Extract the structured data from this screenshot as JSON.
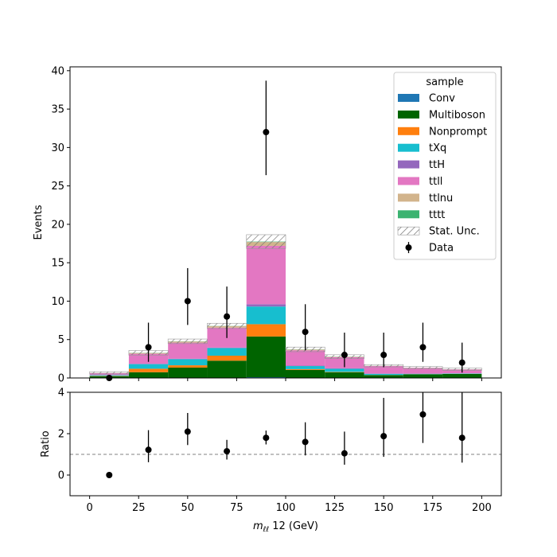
{
  "chart_data": {
    "type": "bar",
    "stacked": true,
    "bin_edges": [
      0,
      20,
      40,
      60,
      80,
      100,
      120,
      140,
      160,
      180,
      200
    ],
    "xlabel": "$m_{\\ell\\ell}$ 12 (GeV)",
    "xlabel_parts": {
      "m": "m",
      "sub": "ℓℓ",
      "rest": " 12 (GeV)"
    },
    "xlim": [
      -10,
      210
    ],
    "xticks": [
      0,
      25,
      50,
      75,
      100,
      125,
      150,
      175,
      200
    ],
    "main": {
      "ylabel": "Events",
      "ylim": [
        0,
        40.5
      ],
      "yticks": [
        0,
        5,
        10,
        15,
        20,
        25,
        30,
        35,
        40
      ]
    },
    "ratio": {
      "ylabel": "Ratio",
      "ylim": [
        -1,
        4
      ],
      "yticks": [
        0,
        2,
        4
      ],
      "reference_line": 1
    },
    "legend": {
      "title": "sample",
      "position": "top-right"
    },
    "series": [
      {
        "name": "Conv",
        "color": "#1f77b4",
        "values": [
          0.02,
          0.05,
          0.05,
          0.05,
          0.1,
          0.05,
          0.05,
          0.02,
          0.02,
          0.02
        ]
      },
      {
        "name": "Multiboson",
        "color": "#006400",
        "values": [
          0.2,
          0.7,
          1.3,
          2.2,
          5.3,
          1.0,
          0.7,
          0.35,
          0.45,
          0.5
        ]
      },
      {
        "name": "Nonprompt",
        "color": "#ff7f0e",
        "values": [
          0.05,
          0.45,
          0.3,
          0.65,
          1.6,
          0.1,
          0.05,
          0.02,
          0.02,
          0.02
        ]
      },
      {
        "name": "tXq",
        "color": "#17becf",
        "values": [
          0.1,
          0.6,
          0.8,
          1.0,
          2.3,
          0.4,
          0.4,
          0.15,
          0.05,
          0.05
        ]
      },
      {
        "name": "ttH",
        "color": "#9467bd",
        "values": [
          0.02,
          0.05,
          0.05,
          0.05,
          0.3,
          0.05,
          0.05,
          0.02,
          0.02,
          0.02
        ]
      },
      {
        "name": "ttll",
        "color": "#e377c2",
        "values": [
          0.25,
          1.3,
          2.1,
          2.6,
          7.6,
          2.0,
          1.45,
          1.0,
          0.75,
          0.5
        ]
      },
      {
        "name": "ttlnu",
        "color": "#d2b48c",
        "values": [
          0.02,
          0.1,
          0.15,
          0.2,
          0.5,
          0.1,
          0.05,
          0.02,
          0.02,
          0.02
        ]
      },
      {
        "name": "tttt",
        "color": "#3cb371",
        "values": [
          0.01,
          0.02,
          0.02,
          0.02,
          0.05,
          0.02,
          0.02,
          0.01,
          0.01,
          0.01
        ]
      }
    ],
    "stat_unc": {
      "name": "Stat. Unc.",
      "values": [
        0.15,
        0.3,
        0.3,
        0.35,
        0.9,
        0.3,
        0.25,
        0.15,
        0.15,
        0.15
      ]
    },
    "data": {
      "name": "Data",
      "x": [
        10,
        30,
        50,
        70,
        90,
        110,
        130,
        150,
        170,
        190
      ],
      "y": [
        0,
        4,
        10,
        8,
        32,
        6,
        3,
        3,
        4,
        2
      ],
      "err_low": [
        0,
        1.9,
        3.1,
        2.8,
        5.6,
        2.4,
        1.6,
        1.6,
        1.9,
        1.3
      ],
      "err_high": [
        0,
        3.2,
        4.3,
        3.9,
        6.7,
        3.6,
        2.9,
        2.9,
        3.2,
        2.6
      ]
    },
    "ratio_points": {
      "x": [
        10,
        30,
        50,
        70,
        90,
        110,
        130,
        150,
        170,
        190
      ],
      "y": [
        0,
        1.22,
        2.1,
        1.15,
        1.8,
        1.6,
        1.05,
        1.88,
        2.93,
        1.8
      ],
      "err_low": [
        0,
        0.6,
        0.65,
        0.4,
        0.32,
        0.65,
        0.55,
        1.0,
        1.38,
        1.2
      ],
      "err_high": [
        0,
        0.95,
        0.9,
        0.55,
        0.35,
        0.95,
        1.05,
        1.85,
        1.7,
        2.2
      ]
    }
  }
}
